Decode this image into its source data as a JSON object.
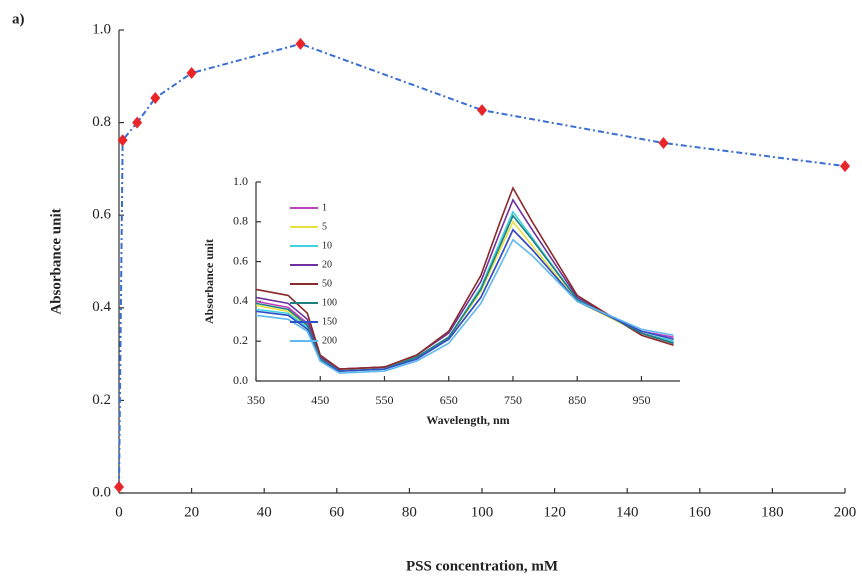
{
  "chart_data": [
    {
      "type": "line",
      "panel_label": "a)",
      "x_label": "PSS concentration, mM",
      "y_label": "Absorbance unit",
      "x": [
        0,
        1,
        5,
        10,
        20,
        50,
        100,
        150,
        200
      ],
      "series": [
        {
          "values": [
            0.013,
            0.762,
            0.8,
            0.853,
            0.907,
            0.97,
            0.827,
            0.756,
            0.706
          ],
          "color": "#e8262a"
        }
      ],
      "line_color": "#3a6fd0",
      "line_style": "dashed",
      "markers": true,
      "xlim": [
        0,
        200
      ],
      "xticks": [
        0,
        20,
        40,
        60,
        80,
        100,
        120,
        140,
        160,
        180,
        200
      ],
      "ylim": [
        0,
        1
      ],
      "yticks": [
        {
          "value": 0,
          "label": "0.0"
        },
        0.2,
        0.4,
        0.6,
        0.8,
        {
          "value": 1,
          "label": "1.0"
        }
      ]
    },
    {
      "type": "line",
      "x_label": "Wavelength, nm",
      "y_label": "Absorbance unit",
      "x": [
        350,
        400,
        430,
        450,
        480,
        550,
        600,
        650,
        700,
        730,
        750,
        780,
        850,
        950,
        1000
      ],
      "series": [
        {
          "name": "1",
          "color": "#c040c0",
          "values": [
            0.4,
            0.37,
            0.29,
            0.12,
            0.06,
            0.07,
            0.12,
            0.21,
            0.42,
            0.62,
            0.76,
            0.66,
            0.4,
            0.25,
            0.22
          ]
        },
        {
          "name": "5",
          "color": "#e8e040",
          "values": [
            0.38,
            0.35,
            0.28,
            0.11,
            0.05,
            0.07,
            0.12,
            0.22,
            0.45,
            0.66,
            0.8,
            0.68,
            0.4,
            0.24,
            0.2
          ]
        },
        {
          "name": "10",
          "color": "#40d0e0",
          "values": [
            0.36,
            0.34,
            0.27,
            0.11,
            0.05,
            0.06,
            0.12,
            0.22,
            0.47,
            0.7,
            0.85,
            0.72,
            0.41,
            0.24,
            0.2
          ]
        },
        {
          "name": "20",
          "color": "#7030a0",
          "values": [
            0.42,
            0.39,
            0.31,
            0.12,
            0.06,
            0.07,
            0.13,
            0.24,
            0.5,
            0.75,
            0.91,
            0.76,
            0.42,
            0.24,
            0.19
          ]
        },
        {
          "name": "50",
          "color": "#8b2a2a",
          "values": [
            0.46,
            0.43,
            0.34,
            0.13,
            0.06,
            0.07,
            0.13,
            0.25,
            0.53,
            0.8,
            0.97,
            0.8,
            0.43,
            0.23,
            0.18
          ]
        },
        {
          "name": "100",
          "color": "#208080",
          "values": [
            0.39,
            0.36,
            0.28,
            0.11,
            0.05,
            0.06,
            0.12,
            0.22,
            0.46,
            0.68,
            0.83,
            0.71,
            0.41,
            0.24,
            0.19
          ]
        },
        {
          "name": "150",
          "color": "#3050c8",
          "values": [
            0.35,
            0.33,
            0.26,
            0.1,
            0.05,
            0.06,
            0.11,
            0.21,
            0.42,
            0.62,
            0.76,
            0.66,
            0.4,
            0.25,
            0.21
          ]
        },
        {
          "name": "200",
          "color": "#60b8f0",
          "values": [
            0.33,
            0.31,
            0.25,
            0.1,
            0.04,
            0.05,
            0.1,
            0.19,
            0.39,
            0.58,
            0.71,
            0.63,
            0.4,
            0.26,
            0.23
          ]
        }
      ],
      "xlim": [
        350,
        1010
      ],
      "xticks": [
        350,
        450,
        550,
        650,
        750,
        850,
        950
      ],
      "ylim": [
        0,
        1
      ],
      "yticks": [
        {
          "value": 0,
          "label": "0.0"
        },
        0.2,
        0.4,
        0.6,
        0.8,
        {
          "value": 1,
          "label": "1.0"
        }
      ]
    }
  ]
}
